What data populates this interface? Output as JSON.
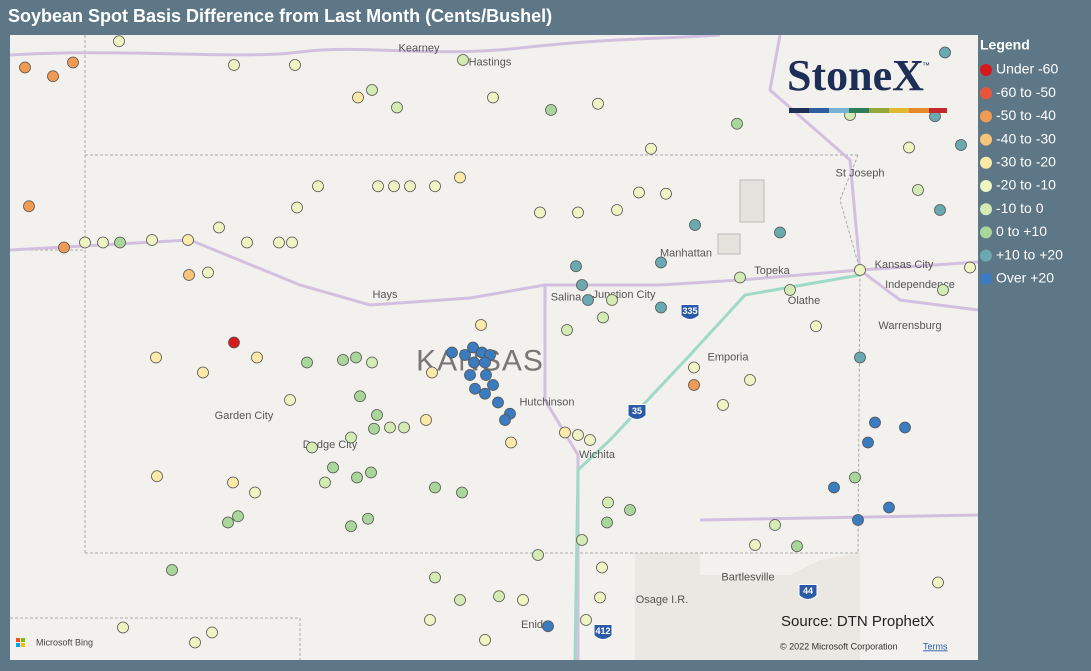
{
  "header": {
    "title": "Soybean Spot Basis Difference from Last Month (Cents/Bushel)"
  },
  "map": {
    "lon_range": [
      -103.05,
      -93.37
    ],
    "lat_range": [
      41.03,
      36.03
    ],
    "places": [
      {
        "label": "Kearney",
        "lon": -98.96,
        "lat": 40.92
      },
      {
        "label": "Hastings",
        "lon": -98.25,
        "lat": 40.81
      },
      {
        "label": "St Joseph",
        "lon": -94.55,
        "lat": 39.92
      },
      {
        "label": "Manhattan",
        "lon": -96.29,
        "lat": 39.28
      },
      {
        "label": "Topeka",
        "lon": -95.43,
        "lat": 39.14
      },
      {
        "label": "Kansas City",
        "lon": -94.11,
        "lat": 39.19
      },
      {
        "label": "Independence",
        "lon": -93.95,
        "lat": 39.03
      },
      {
        "label": "Olathe",
        "lon": -95.11,
        "lat": 38.9
      },
      {
        "label": "Junction City",
        "lon": -96.91,
        "lat": 38.95
      },
      {
        "label": "Salina",
        "lon": -97.49,
        "lat": 38.93
      },
      {
        "label": "Hays",
        "lon": -99.3,
        "lat": 38.95
      },
      {
        "label": "Warrensburg",
        "lon": -94.05,
        "lat": 38.7
      },
      {
        "label": "Emporia",
        "lon": -95.87,
        "lat": 38.45
      },
      {
        "label": "KANSAS",
        "lon": -98.35,
        "lat": 38.41,
        "kind": "state"
      },
      {
        "label": "Hutchinson",
        "lon": -97.68,
        "lat": 38.09
      },
      {
        "label": "Garden City",
        "lon": -100.71,
        "lat": 37.98
      },
      {
        "label": "Dodge City",
        "lon": -99.85,
        "lat": 37.75
      },
      {
        "label": "Wichita",
        "lon": -97.18,
        "lat": 37.67
      },
      {
        "label": "Bartlesville",
        "lon": -95.67,
        "lat": 36.69
      },
      {
        "label": "Osage I.R.",
        "lon": -96.53,
        "lat": 36.51
      },
      {
        "label": "Enid",
        "lon": -97.83,
        "lat": 36.31
      }
    ],
    "shields": [
      {
        "label": "335",
        "lon": -96.25,
        "lat": 38.81
      },
      {
        "label": "35",
        "lon": -96.78,
        "lat": 38.01
      },
      {
        "label": "44",
        "lon": -95.07,
        "lat": 36.57
      },
      {
        "label": "412",
        "lon": -97.12,
        "lat": 36.25
      }
    ],
    "points": [
      [
        -102.9,
        40.77,
        2
      ],
      [
        -102.42,
        40.81,
        2
      ],
      [
        -102.62,
        40.7,
        2
      ],
      [
        -102.86,
        39.66,
        2
      ],
      [
        -102.51,
        39.33,
        2
      ],
      [
        -100.81,
        38.57,
        0
      ],
      [
        -101.96,
        40.98,
        5
      ],
      [
        -100.81,
        40.79,
        5
      ],
      [
        -100.2,
        40.79,
        5
      ],
      [
        -99.57,
        40.53,
        4
      ],
      [
        -99.43,
        40.59,
        6
      ],
      [
        -99.18,
        40.45,
        6
      ],
      [
        -98.52,
        40.83,
        6
      ],
      [
        -98.22,
        40.53,
        5
      ],
      [
        -97.64,
        40.43,
        7
      ],
      [
        -97.17,
        40.48,
        5
      ],
      [
        -96.64,
        40.12,
        5
      ],
      [
        -95.78,
        40.32,
        7
      ],
      [
        -93.8,
        40.38,
        8
      ],
      [
        -93.54,
        40.15,
        8
      ],
      [
        -93.7,
        40.89,
        8
      ],
      [
        -94.65,
        40.39,
        6
      ],
      [
        -94.06,
        40.13,
        5
      ],
      [
        -93.97,
        39.79,
        6
      ],
      [
        -93.75,
        39.63,
        8
      ],
      [
        -95.35,
        39.45,
        8
      ],
      [
        -96.2,
        39.51,
        8
      ],
      [
        -96.54,
        39.21,
        8
      ],
      [
        -97.39,
        39.18,
        8
      ],
      [
        -97.33,
        39.03,
        8
      ],
      [
        -97.27,
        38.91,
        8
      ],
      [
        -96.54,
        38.85,
        8
      ],
      [
        -97.03,
        38.91,
        6
      ],
      [
        -97.12,
        38.77,
        6
      ],
      [
        -97.48,
        38.67,
        6
      ],
      [
        -95.75,
        39.09,
        6
      ],
      [
        -95.25,
        38.99,
        6
      ],
      [
        -94.99,
        38.7,
        5
      ],
      [
        -94.55,
        38.45,
        8
      ],
      [
        -94.4,
        37.93,
        9
      ],
      [
        -94.1,
        37.89,
        9
      ],
      [
        -94.47,
        37.77,
        9
      ],
      [
        -94.81,
        37.41,
        9
      ],
      [
        -94.26,
        37.25,
        9
      ],
      [
        -94.57,
        37.15,
        9
      ],
      [
        -94.6,
        37.49,
        7
      ],
      [
        -95.4,
        37.11,
        6
      ],
      [
        -95.18,
        36.94,
        7
      ],
      [
        -95.6,
        36.95,
        5
      ],
      [
        -96.21,
        38.23,
        2
      ],
      [
        -96.21,
        38.37,
        5
      ],
      [
        -95.65,
        38.27,
        5
      ],
      [
        -95.92,
        38.07,
        5
      ],
      [
        -94.55,
        39.15,
        5
      ],
      [
        -93.45,
        39.17,
        5
      ],
      [
        -93.72,
        38.99,
        6
      ],
      [
        -98.63,
        38.49,
        9
      ],
      [
        -98.5,
        38.47,
        9
      ],
      [
        -98.42,
        38.53,
        9
      ],
      [
        -98.33,
        38.49,
        9
      ],
      [
        -98.25,
        38.47,
        9
      ],
      [
        -98.3,
        38.41,
        9
      ],
      [
        -98.41,
        38.41,
        9
      ],
      [
        -98.45,
        38.31,
        9
      ],
      [
        -98.29,
        38.31,
        9
      ],
      [
        -98.22,
        38.23,
        9
      ],
      [
        -98.4,
        38.2,
        9
      ],
      [
        -98.3,
        38.16,
        9
      ],
      [
        -98.17,
        38.09,
        9
      ],
      [
        -98.05,
        38.0,
        9
      ],
      [
        -98.1,
        37.95,
        9
      ],
      [
        -97.67,
        36.3,
        9
      ],
      [
        -101.95,
        39.37,
        7
      ],
      [
        -100.08,
        38.41,
        7
      ],
      [
        -99.72,
        38.43,
        7
      ],
      [
        -99.59,
        38.45,
        7
      ],
      [
        -99.43,
        38.41,
        6
      ],
      [
        -99.55,
        38.14,
        7
      ],
      [
        -99.38,
        37.99,
        7
      ],
      [
        -99.41,
        37.88,
        7
      ],
      [
        -99.25,
        37.89,
        6
      ],
      [
        -99.11,
        37.89,
        6
      ],
      [
        -99.64,
        37.81,
        6
      ],
      [
        -99.82,
        37.57,
        7
      ],
      [
        -99.9,
        37.45,
        6
      ],
      [
        -100.03,
        37.73,
        6
      ],
      [
        -99.44,
        37.53,
        7
      ],
      [
        -99.58,
        37.49,
        7
      ],
      [
        -100.77,
        37.18,
        7
      ],
      [
        -100.87,
        37.13,
        7
      ],
      [
        -101.43,
        36.75,
        7
      ],
      [
        -99.64,
        37.1,
        7
      ],
      [
        -99.47,
        37.16,
        7
      ],
      [
        -98.8,
        37.41,
        7
      ],
      [
        -98.53,
        37.37,
        7
      ],
      [
        -98.8,
        36.69,
        6
      ],
      [
        -98.55,
        36.51,
        6
      ],
      [
        -98.16,
        36.54,
        6
      ],
      [
        -97.77,
        36.87,
        6
      ],
      [
        -97.08,
        37.13,
        7
      ],
      [
        -96.85,
        37.23,
        7
      ],
      [
        -97.33,
        36.99,
        6
      ],
      [
        -97.07,
        37.29,
        6
      ],
      [
        -101.59,
        38.45,
        4
      ],
      [
        -101.12,
        38.33,
        4
      ],
      [
        -100.58,
        38.45,
        4
      ],
      [
        -101.58,
        37.5,
        4
      ],
      [
        -100.82,
        37.45,
        4
      ],
      [
        -98.89,
        37.95,
        4
      ],
      [
        -98.34,
        38.71,
        4
      ],
      [
        -98.83,
        38.33,
        4
      ],
      [
        -98.04,
        37.77,
        4
      ],
      [
        -97.5,
        37.85,
        4
      ],
      [
        -101.26,
        39.11,
        3
      ],
      [
        -101.07,
        39.13,
        5
      ],
      [
        -101.27,
        39.39,
        4
      ],
      [
        -101.63,
        39.39,
        5
      ],
      [
        -102.3,
        39.37,
        5
      ],
      [
        -102.12,
        39.37,
        5
      ],
      [
        -100.96,
        39.49,
        5
      ],
      [
        -100.68,
        39.37,
        5
      ],
      [
        -100.36,
        39.37,
        5
      ],
      [
        -100.23,
        39.37,
        5
      ],
      [
        -99.37,
        39.82,
        5
      ],
      [
        -99.21,
        39.82,
        5
      ],
      [
        -99.05,
        39.82,
        5
      ],
      [
        -100.18,
        39.65,
        5
      ],
      [
        -99.97,
        39.82,
        5
      ],
      [
        -98.8,
        39.82,
        5
      ],
      [
        -98.55,
        39.89,
        4
      ],
      [
        -97.75,
        39.61,
        5
      ],
      [
        -97.37,
        39.61,
        5
      ],
      [
        -96.98,
        39.63,
        5
      ],
      [
        -96.76,
        39.77,
        5
      ],
      [
        -96.49,
        39.76,
        5
      ],
      [
        -97.37,
        37.83,
        5
      ],
      [
        -97.25,
        37.79,
        5
      ],
      [
        -97.92,
        36.51,
        5
      ],
      [
        -97.13,
        36.77,
        5
      ],
      [
        -97.29,
        36.35,
        5
      ],
      [
        -97.15,
        36.53,
        5
      ],
      [
        -93.77,
        36.65,
        5
      ],
      [
        -101.03,
        36.25,
        5
      ],
      [
        -101.2,
        36.17,
        5
      ],
      [
        -101.92,
        36.29,
        5
      ],
      [
        -100.6,
        37.37,
        5
      ],
      [
        -100.25,
        38.11,
        5
      ],
      [
        -98.85,
        36.35,
        5
      ],
      [
        -98.3,
        36.19,
        5
      ]
    ]
  },
  "legend": {
    "title": "Legend",
    "bins": [
      {
        "label": "Under -60",
        "color": "#d7191c"
      },
      {
        "label": "-60 to -50",
        "color": "#e8553b"
      },
      {
        "label": "-50 to -40",
        "color": "#f19a53"
      },
      {
        "label": "-40 to -30",
        "color": "#f7c47c"
      },
      {
        "label": "-30 to -20",
        "color": "#fdeaa8"
      },
      {
        "label": "-20 to -10",
        "color": "#eef4c2"
      },
      {
        "label": "-10 to 0",
        "color": "#d4ebb3"
      },
      {
        "label": "0 to +10",
        "color": "#a9d69a"
      },
      {
        "label": "+10 to +20",
        "color": "#6aa9b0"
      },
      {
        "label": "Over +20",
        "color": "#3b7bbf"
      }
    ]
  },
  "logo": {
    "text": "StoneX",
    "mark": "™"
  },
  "source": "Source: DTN ProphetX",
  "attribution": {
    "bing": "Microsoft Bing",
    "copyright": "© 2022 Microsoft Corporation",
    "terms": "Terms"
  }
}
